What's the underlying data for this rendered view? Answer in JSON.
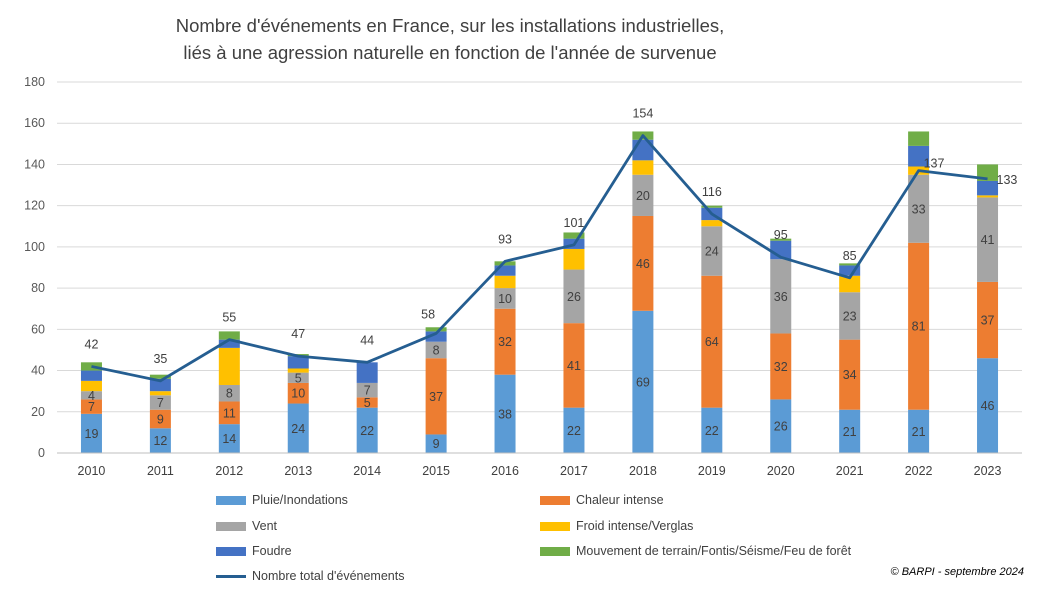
{
  "chart_data": {
    "type": "bar",
    "stacked": true,
    "title_lines": [
      "Nombre d'événements en France, sur les installations industrielles,",
      "liés à une agression naturelle en fonction de l'année de survenue"
    ],
    "categories": [
      "2010",
      "2011",
      "2012",
      "2013",
      "2014",
      "2015",
      "2016",
      "2017",
      "2018",
      "2019",
      "2020",
      "2021",
      "2022",
      "2023"
    ],
    "ylim": [
      0,
      180
    ],
    "yticks": [
      0,
      20,
      40,
      60,
      80,
      100,
      120,
      140,
      160,
      180
    ],
    "grid": true,
    "series": [
      {
        "name": "Pluie/Inondations",
        "color": "#5b9bd5",
        "values": [
          19,
          12,
          14,
          24,
          22,
          9,
          38,
          22,
          69,
          22,
          26,
          21,
          21,
          46
        ],
        "labels": [
          "19",
          "12",
          "14",
          "24",
          "22",
          "9",
          "38",
          "22",
          "69",
          "22",
          "26",
          "21",
          "21",
          "46"
        ]
      },
      {
        "name": "Chaleur intense",
        "color": "#ed7d31",
        "values": [
          7,
          9,
          11,
          10,
          5,
          37,
          32,
          41,
          46,
          64,
          32,
          34,
          81,
          37
        ],
        "labels": [
          "7",
          "9",
          "11",
          "10",
          "5",
          "37",
          "32",
          "41",
          "46",
          "64",
          "32",
          "34",
          "81",
          "37"
        ]
      },
      {
        "name": "Vent",
        "color": "#a5a5a5",
        "values": [
          4,
          7,
          8,
          5,
          7,
          8,
          10,
          26,
          20,
          24,
          36,
          23,
          33,
          41
        ],
        "labels": [
          "4",
          "7",
          "8",
          "5",
          "7",
          "8",
          "10",
          "26",
          "20",
          "24",
          "36",
          "23",
          "33",
          "41"
        ]
      },
      {
        "name": "Froid intense/Verglas",
        "color": "#ffc000",
        "values": [
          5,
          2,
          18,
          2,
          0,
          0,
          6,
          10,
          7,
          3,
          0,
          8,
          4,
          1
        ],
        "labels": [
          "",
          "",
          "",
          "",
          "",
          "",
          "",
          "",
          "",
          "",
          "",
          "",
          "",
          ""
        ]
      },
      {
        "name": "Foudre",
        "color": "#4472c4",
        "values": [
          5,
          6,
          4,
          6,
          10,
          5,
          5,
          5,
          10,
          6,
          9,
          5,
          10,
          7
        ],
        "labels": [
          "",
          "",
          "",
          "",
          "",
          "",
          "",
          "",
          "",
          "",
          "",
          "",
          "",
          ""
        ]
      },
      {
        "name": "Mouvement de terrain/Fontis/Séisme/Feu de forêt",
        "color": "#70ad47",
        "values": [
          4,
          2,
          4,
          1,
          0,
          2,
          2,
          3,
          4,
          1,
          1,
          1,
          7,
          8
        ],
        "labels": [
          "",
          "",
          "",
          "",
          "",
          "",
          "",
          "",
          "",
          "",
          "",
          "",
          "",
          ""
        ]
      }
    ],
    "total": {
      "name": "Nombre total d'événements",
      "color": "#255e91",
      "values": [
        42,
        35,
        55,
        47,
        44,
        58,
        93,
        101,
        154,
        116,
        95,
        85,
        137,
        133
      ]
    },
    "legend_placement": "bottom"
  },
  "credit": "© BARPI - septembre 2024"
}
